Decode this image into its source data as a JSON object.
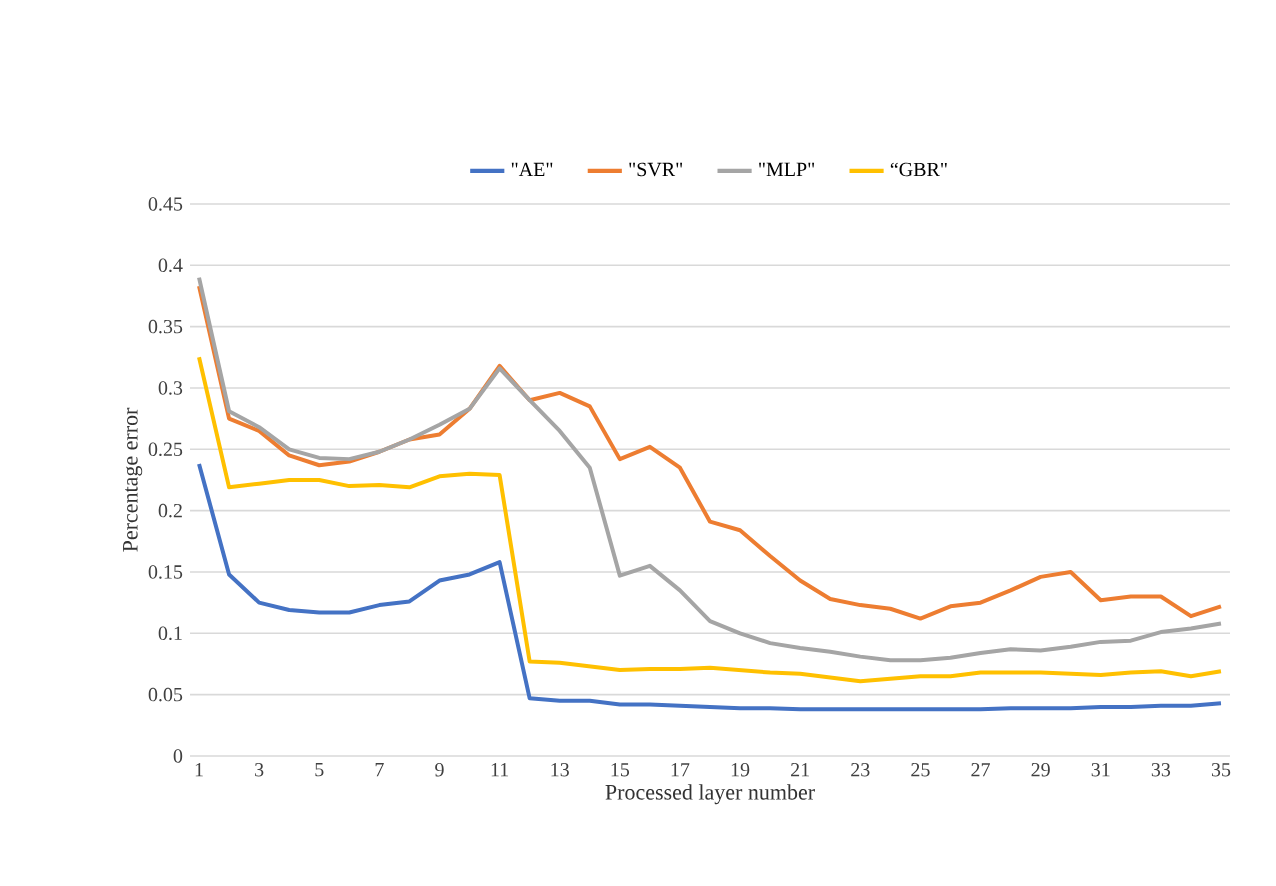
{
  "chart_data": {
    "type": "line",
    "xlabel": "Processed layer number",
    "ylabel": "Percentage error",
    "categories": [
      "1",
      null,
      "3",
      null,
      "5",
      null,
      "7",
      null,
      "9",
      null,
      "11",
      null,
      "13",
      null,
      "15",
      null,
      "17",
      null,
      "19",
      null,
      "21",
      null,
      "23",
      null,
      "25",
      null,
      "27",
      null,
      "29",
      null,
      "31",
      null,
      "33",
      null,
      "35"
    ],
    "series": [
      {
        "name": "\"AE\"",
        "color": "#4472c4",
        "values": [
          0.238,
          0.148,
          0.125,
          0.119,
          0.117,
          0.117,
          0.123,
          0.126,
          0.143,
          0.148,
          0.158,
          0.047,
          0.045,
          0.045,
          0.042,
          0.042,
          0.041,
          0.04,
          0.039,
          0.039,
          0.038,
          0.038,
          0.038,
          0.038,
          0.038,
          0.038,
          0.038,
          0.039,
          0.039,
          0.039,
          0.04,
          0.04,
          0.041,
          0.041,
          0.043
        ]
      },
      {
        "name": "\"SVR\"",
        "color": "#ed7d31",
        "values": [
          0.383,
          0.275,
          0.265,
          0.245,
          0.237,
          0.24,
          0.248,
          0.258,
          0.262,
          0.283,
          0.318,
          0.29,
          0.296,
          0.285,
          0.242,
          0.252,
          0.235,
          0.191,
          0.184,
          0.163,
          0.143,
          0.128,
          0.123,
          0.12,
          0.112,
          0.122,
          0.125,
          0.135,
          0.146,
          0.15,
          0.127,
          0.13,
          0.13,
          0.114,
          0.122
        ]
      },
      {
        "name": "\"MLP\"",
        "color": "#a5a5a5",
        "values": [
          0.39,
          0.281,
          0.268,
          0.25,
          0.243,
          0.242,
          0.248,
          0.258,
          0.27,
          0.283,
          0.316,
          0.29,
          0.265,
          0.235,
          0.147,
          0.155,
          0.135,
          0.11,
          0.1,
          0.092,
          0.088,
          0.085,
          0.081,
          0.078,
          0.078,
          0.08,
          0.084,
          0.087,
          0.086,
          0.089,
          0.093,
          0.094,
          0.101,
          0.104,
          0.108
        ]
      },
      {
        "name": "“GBR\"",
        "color": "#ffc000",
        "values": [
          0.325,
          0.219,
          0.222,
          0.225,
          0.225,
          0.22,
          0.221,
          0.219,
          0.228,
          0.23,
          0.229,
          0.077,
          0.076,
          0.073,
          0.07,
          0.071,
          0.071,
          0.072,
          0.07,
          0.068,
          0.067,
          0.064,
          0.061,
          0.063,
          0.065,
          0.065,
          0.068,
          0.068,
          0.068,
          0.067,
          0.066,
          0.068,
          0.069,
          0.065,
          0.069
        ]
      }
    ],
    "ylim": [
      0,
      0.45
    ],
    "yticks": [
      0,
      0.05,
      0.1,
      0.15,
      0.2,
      0.25,
      0.3,
      0.35,
      0.4,
      0.45
    ],
    "grid": "y",
    "legend": "top",
    "marker": "none",
    "line_style": "solid"
  }
}
